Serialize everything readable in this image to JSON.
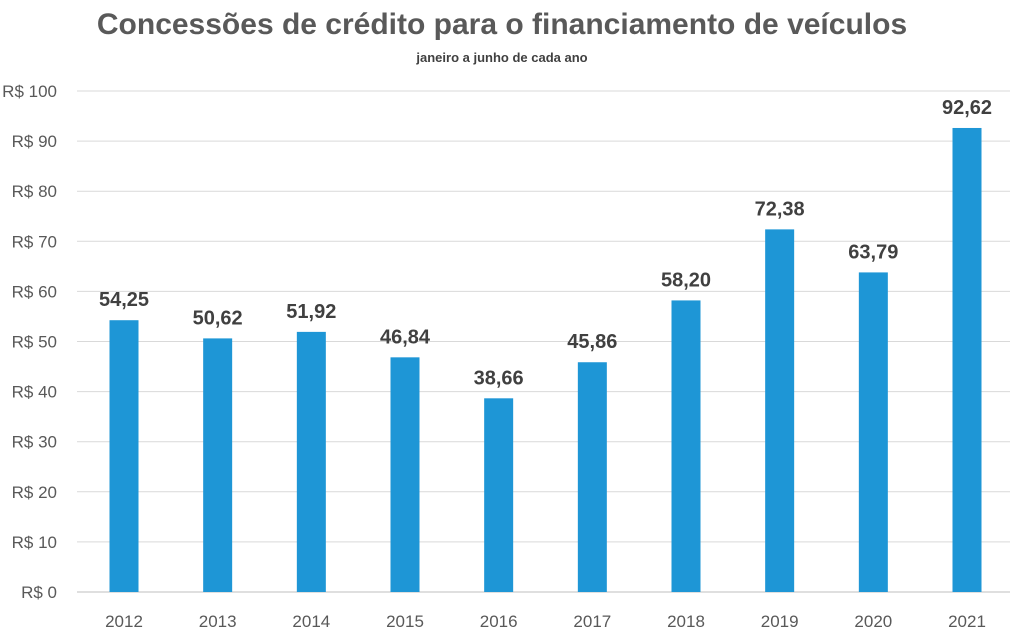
{
  "chart_data": {
    "type": "bar",
    "title": "Concessões de crédito para o financiamento de veículos",
    "subtitle": "janeiro a junho de cada ano",
    "categories": [
      "2012",
      "2013",
      "2014",
      "2015",
      "2016",
      "2017",
      "2018",
      "2019",
      "2020",
      "2021"
    ],
    "values": [
      54.25,
      50.62,
      51.92,
      46.84,
      38.66,
      45.86,
      58.2,
      72.38,
      63.79,
      92.62
    ],
    "data_labels": [
      "54,25",
      "50,62",
      "51,92",
      "46,84",
      "38,66",
      "45,86",
      "58,20",
      "72,38",
      "63,79",
      "92,62"
    ],
    "y_ticks": [
      "R$ 0",
      "R$ 10",
      "R$ 20",
      "R$ 30",
      "R$ 40",
      "R$ 50",
      "R$ 60",
      "R$ 70",
      "R$ 80",
      "R$ 90",
      "R$ 100"
    ],
    "ylim": [
      0,
      100
    ],
    "grid": true,
    "bar_color": "#1e96d6",
    "xlabel": "",
    "ylabel": ""
  }
}
